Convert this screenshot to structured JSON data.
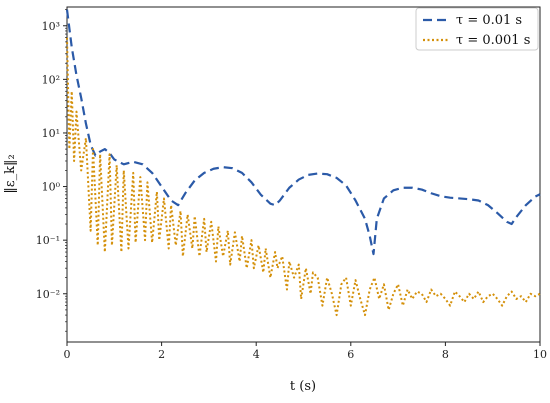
{
  "chart_data": {
    "type": "line",
    "xlabel": "t (s)",
    "ylabel": "‖ε_k‖₂",
    "x_ticks": [
      "0",
      "2",
      "4",
      "6",
      "8",
      "10"
    ],
    "y_ticks": [
      "10⁻²",
      "10⁻¹",
      "10⁰",
      "10¹",
      "10²",
      "10³"
    ],
    "xlim": [
      0,
      10
    ],
    "ylim_log10": [
      -2.9,
      3.35
    ],
    "y_scale": "log",
    "grid": false,
    "legend_position": "top-right",
    "series": [
      {
        "name": "τ = 0.01 s",
        "color": "#2b5aa8",
        "style": "dashed",
        "x": [
          0.0,
          0.1,
          0.2,
          0.3,
          0.4,
          0.5,
          0.6,
          0.7,
          0.8,
          0.9,
          1.0,
          1.2,
          1.4,
          1.6,
          1.8,
          2.0,
          2.2,
          2.35,
          2.5,
          2.7,
          2.9,
          3.1,
          3.3,
          3.5,
          3.7,
          3.9,
          4.1,
          4.3,
          4.4,
          4.5,
          4.7,
          4.9,
          5.1,
          5.3,
          5.5,
          5.7,
          5.9,
          6.1,
          6.3,
          6.4,
          6.48,
          6.55,
          6.7,
          6.9,
          7.1,
          7.3,
          7.5,
          7.7,
          7.9,
          8.1,
          8.3,
          8.5,
          8.7,
          8.9,
          9.1,
          9.3,
          9.4,
          9.5,
          9.7,
          9.9,
          10.0
        ],
        "y": [
          2000,
          400,
          120,
          45,
          15,
          6,
          3.8,
          4.5,
          5.0,
          4.2,
          3.2,
          2.6,
          2.9,
          2.6,
          1.8,
          1.0,
          0.55,
          0.45,
          0.75,
          1.3,
          1.8,
          2.15,
          2.3,
          2.2,
          1.8,
          1.2,
          0.7,
          0.48,
          0.45,
          0.55,
          0.95,
          1.35,
          1.65,
          1.75,
          1.7,
          1.45,
          1.05,
          0.55,
          0.25,
          0.12,
          0.055,
          0.25,
          0.6,
          0.85,
          0.95,
          0.95,
          0.88,
          0.75,
          0.66,
          0.62,
          0.6,
          0.58,
          0.55,
          0.45,
          0.32,
          0.22,
          0.2,
          0.27,
          0.45,
          0.65,
          0.72
        ]
      },
      {
        "name": "τ = 0.001 s",
        "color": "#d4900a",
        "style": "dotted",
        "x": [
          0.0,
          0.05,
          0.1,
          0.15,
          0.2,
          0.3,
          0.4,
          0.5,
          0.55,
          0.65,
          0.7,
          0.8,
          0.9,
          0.95,
          1.05,
          1.15,
          1.2,
          1.3,
          1.4,
          1.45,
          1.55,
          1.65,
          1.7,
          1.8,
          1.9,
          1.95,
          2.05,
          2.15,
          2.2,
          2.3,
          2.4,
          2.45,
          2.55,
          2.65,
          2.7,
          2.8,
          2.9,
          2.95,
          3.05,
          3.15,
          3.2,
          3.3,
          3.4,
          3.45,
          3.55,
          3.65,
          3.7,
          3.8,
          3.9,
          3.95,
          4.05,
          4.15,
          4.2,
          4.3,
          4.4,
          4.45,
          4.55,
          4.65,
          4.7,
          4.8,
          4.9,
          4.95,
          5.05,
          5.15,
          5.2,
          5.3,
          5.4,
          5.5,
          5.6,
          5.7,
          5.8,
          5.9,
          6.0,
          6.1,
          6.2,
          6.3,
          6.4,
          6.5,
          6.6,
          6.7,
          6.8,
          6.9,
          7.0,
          7.1,
          7.2,
          7.3,
          7.4,
          7.5,
          7.6,
          7.7,
          7.8,
          7.9,
          8.0,
          8.1,
          8.2,
          8.3,
          8.4,
          8.5,
          8.6,
          8.7,
          8.8,
          8.9,
          9.0,
          9.1,
          9.2,
          9.3,
          9.4,
          9.5,
          9.6,
          9.7,
          9.8,
          9.9,
          10.0
        ],
        "y": [
          600,
          5,
          60,
          3,
          25,
          2,
          8,
          0.15,
          5,
          0.08,
          4,
          0.06,
          4,
          0.08,
          2.5,
          0.06,
          2.0,
          0.07,
          1.8,
          0.09,
          1.5,
          0.1,
          1.2,
          0.09,
          0.8,
          0.1,
          0.6,
          0.07,
          0.45,
          0.08,
          0.35,
          0.05,
          0.3,
          0.07,
          0.28,
          0.05,
          0.25,
          0.06,
          0.22,
          0.04,
          0.18,
          0.05,
          0.15,
          0.035,
          0.14,
          0.04,
          0.12,
          0.03,
          0.1,
          0.03,
          0.08,
          0.025,
          0.07,
          0.02,
          0.06,
          0.03,
          0.05,
          0.012,
          0.04,
          0.02,
          0.035,
          0.008,
          0.03,
          0.01,
          0.025,
          0.02,
          0.006,
          0.02,
          0.01,
          0.004,
          0.015,
          0.02,
          0.006,
          0.018,
          0.008,
          0.004,
          0.012,
          0.02,
          0.008,
          0.015,
          0.005,
          0.01,
          0.015,
          0.006,
          0.012,
          0.008,
          0.011,
          0.01,
          0.007,
          0.012,
          0.009,
          0.01,
          0.008,
          0.006,
          0.011,
          0.009,
          0.007,
          0.01,
          0.008,
          0.011,
          0.007,
          0.009,
          0.01,
          0.008,
          0.006,
          0.009,
          0.011,
          0.008,
          0.009,
          0.007,
          0.01,
          0.009,
          0.01
        ]
      }
    ]
  }
}
